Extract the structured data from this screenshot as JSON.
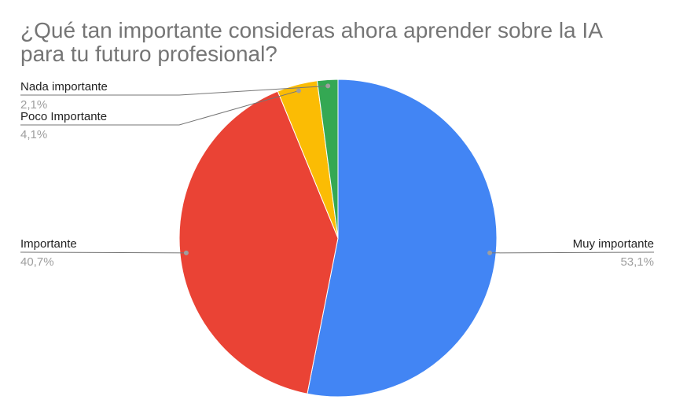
{
  "chart_data": {
    "type": "pie",
    "title": " ¿Qué tan importante consideras ahora aprender sobre la IA para tu futuro profesional?",
    "legend": "none",
    "slices": [
      {
        "label": "Muy importante",
        "value": 53.1,
        "display": "53,1%",
        "color": "#4285F4"
      },
      {
        "label": "Importante",
        "value": 40.7,
        "display": "40,7%",
        "color": "#EA4335"
      },
      {
        "label": "Poco Importante",
        "value": 4.1,
        "display": "4,1%",
        "color": "#FBBC04"
      },
      {
        "label": "Nada importante",
        "value": 2.1,
        "display": "2,1%",
        "color": "#34A853"
      }
    ]
  }
}
